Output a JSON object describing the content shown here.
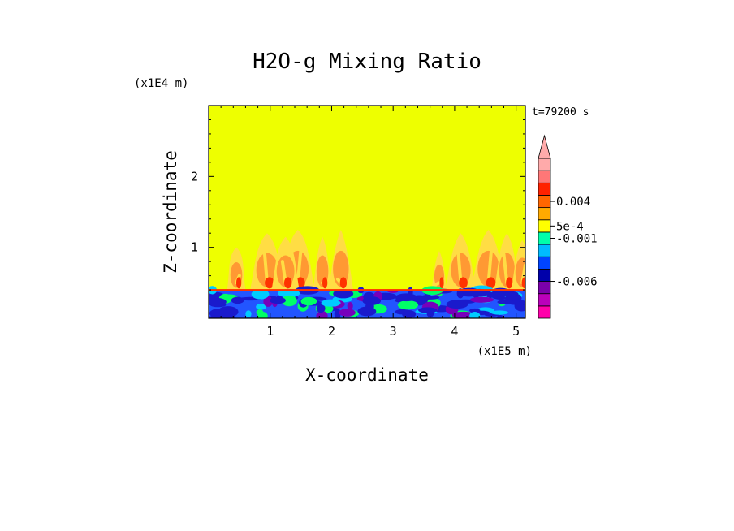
{
  "chart_data": {
    "type": "heatmap",
    "title": "H2O-g Mixing Ratio",
    "xlabel": "X-coordinate",
    "ylabel": "Z-coordinate",
    "x_unit": "(x1E5 m)",
    "y_unit": "(x1E4 m)",
    "time_label": "t=79200 s",
    "x_range": [
      0,
      5.15
    ],
    "y_range": [
      0,
      3.0
    ],
    "x_ticks": [
      1,
      2,
      3,
      4,
      5
    ],
    "y_ticks": [
      1,
      2
    ],
    "boundary_layer_top": 0.4,
    "colorbar": {
      "levels": [
        {
          "color": "#ff00aa"
        },
        {
          "color": "#bb00bb"
        },
        {
          "color": "#7a00aa"
        },
        {
          "color": "#0000aa"
        },
        {
          "color": "#0044ff"
        },
        {
          "color": "#00bbff"
        },
        {
          "color": "#00ffaa"
        },
        {
          "color": "#ffff00"
        },
        {
          "color": "#ffaa00"
        },
        {
          "color": "#ff6600"
        },
        {
          "color": "#ff2200"
        },
        {
          "color": "#ff7777"
        },
        {
          "color": "#ffaaaa"
        }
      ],
      "labels": [
        {
          "text": "0.004",
          "level": 9.5
        },
        {
          "text": "5e-4",
          "level": 7.5
        },
        {
          "text": "-0.001",
          "level": 6.5
        },
        {
          "text": "-0.006",
          "level": 3.0
        }
      ]
    },
    "colors": {
      "background": "#eeff00",
      "plume_light": "#ffdd44",
      "plume_orange": "#ff9933",
      "plume_red": "#ff3300",
      "lower_dark": "#1a1acc",
      "lower_mid": "#2255ff",
      "lower_cyan": "#00ccff",
      "lower_green": "#00ff66",
      "lower_purple": "#7700bb"
    }
  }
}
